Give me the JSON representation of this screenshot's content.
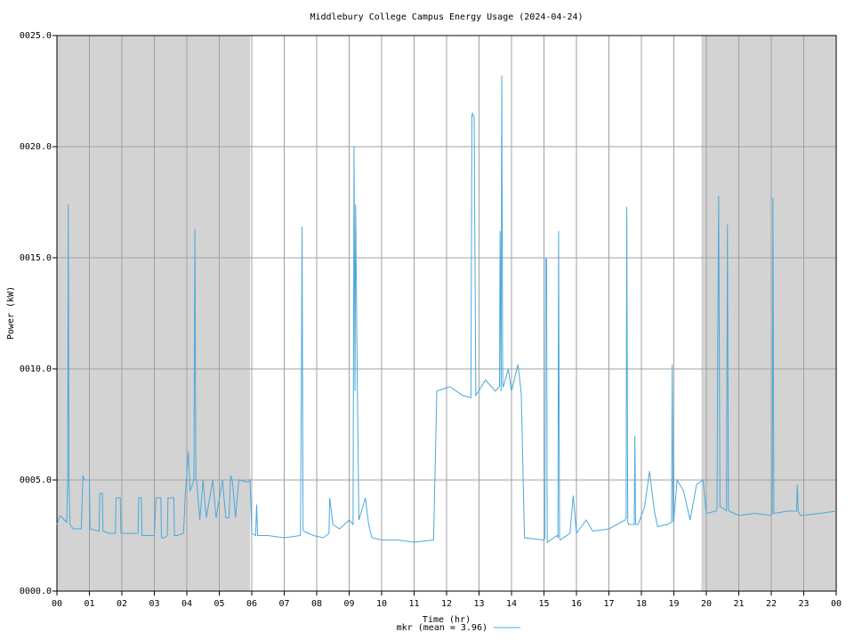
{
  "chart_data": {
    "type": "line",
    "title": "Middlebury College Campus Energy Usage (2024-04-24)",
    "x_label": "Time (hr)",
    "y_label": "Power (kW)",
    "xlim": [
      0,
      24
    ],
    "ylim": [
      0,
      25
    ],
    "xticks": [
      {
        "value": 0,
        "label": "00"
      },
      {
        "value": 1,
        "label": "01"
      },
      {
        "value": 2,
        "label": "02"
      },
      {
        "value": 3,
        "label": "03"
      },
      {
        "value": 4,
        "label": "04"
      },
      {
        "value": 5,
        "label": "05"
      },
      {
        "value": 6,
        "label": "06"
      },
      {
        "value": 7,
        "label": "07"
      },
      {
        "value": 8,
        "label": "08"
      },
      {
        "value": 9,
        "label": "09"
      },
      {
        "value": 10,
        "label": "10"
      },
      {
        "value": 11,
        "label": "11"
      },
      {
        "value": 12,
        "label": "12"
      },
      {
        "value": 13,
        "label": "13"
      },
      {
        "value": 14,
        "label": "14"
      },
      {
        "value": 15,
        "label": "15"
      },
      {
        "value": 16,
        "label": "16"
      },
      {
        "value": 17,
        "label": "17"
      },
      {
        "value": 18,
        "label": "18"
      },
      {
        "value": 19,
        "label": "19"
      },
      {
        "value": 20,
        "label": "20"
      },
      {
        "value": 21,
        "label": "21"
      },
      {
        "value": 22,
        "label": "22"
      },
      {
        "value": 23,
        "label": "23"
      },
      {
        "value": 24,
        "label": "00"
      }
    ],
    "yticks": [
      {
        "value": 0,
        "label": "0000.0"
      },
      {
        "value": 5,
        "label": "0005.0"
      },
      {
        "value": 10,
        "label": "0010.0"
      },
      {
        "value": 15,
        "label": "0015.0"
      },
      {
        "value": 20,
        "label": "0020.0"
      },
      {
        "value": 25,
        "label": "0025.0"
      }
    ],
    "grid": true,
    "shaded_regions": [
      [
        0,
        5.95
      ],
      [
        19.85,
        24
      ]
    ],
    "shade_color": "#d3d3d3",
    "legend": "bottom",
    "x": [
      0,
      0.1,
      0.3,
      0.33,
      0.35,
      0.37,
      0.4,
      0.5,
      0.75,
      0.8,
      0.85,
      1.0,
      1.02,
      1.3,
      1.32,
      1.4,
      1.42,
      1.6,
      1.8,
      1.82,
      1.95,
      1.97,
      2.2,
      2.5,
      2.52,
      2.6,
      2.62,
      2.8,
      3.0,
      3.05,
      3.2,
      3.22,
      3.3,
      3.4,
      3.42,
      3.6,
      3.62,
      3.7,
      3.9,
      3.95,
      4.05,
      4.1,
      4.22,
      4.25,
      4.28,
      4.3,
      4.4,
      4.5,
      4.6,
      4.8,
      4.9,
      5.1,
      5.2,
      5.3,
      5.35,
      5.4,
      5.5,
      5.6,
      5.9,
      5.95,
      6.0,
      6.12,
      6.15,
      6.18,
      6.5,
      7.0,
      7.5,
      7.53,
      7.55,
      7.58,
      7.6,
      7.9,
      8.2,
      8.38,
      8.4,
      8.5,
      8.7,
      9.0,
      9.12,
      9.15,
      9.18,
      9.2,
      9.25,
      9.3,
      9.5,
      9.6,
      9.7,
      10.0,
      10.5,
      11.0,
      11.6,
      11.7,
      12.1,
      12.5,
      12.75,
      12.78,
      12.8,
      12.85,
      12.9,
      13.2,
      13.5,
      13.63,
      13.65,
      13.68,
      13.7,
      13.73,
      13.75,
      13.9,
      14.0,
      14.2,
      14.3,
      14.4,
      15.0,
      15.03,
      15.05,
      15.08,
      15.1,
      15.4,
      15.43,
      15.45,
      15.48,
      15.5,
      15.8,
      15.9,
      16.0,
      16.3,
      16.5,
      17.0,
      17.5,
      17.53,
      17.55,
      17.58,
      17.6,
      17.78,
      17.8,
      17.82,
      17.9,
      18.1,
      18.25,
      18.4,
      18.5,
      18.8,
      18.93,
      18.95,
      18.98,
      19.0,
      19.1,
      19.3,
      19.5,
      19.7,
      19.9,
      20.0,
      20.3,
      20.33,
      20.35,
      20.38,
      20.42,
      20.45,
      20.62,
      20.65,
      20.68,
      20.7,
      21.0,
      21.5,
      22.0,
      22.03,
      22.05,
      22.08,
      22.1,
      22.5,
      22.78,
      22.8,
      22.83,
      22.9,
      23.5,
      24.0
    ],
    "series": [
      {
        "name": "mkr (mean = 3.96)",
        "color": "#4aa8dc",
        "values": [
          3.0,
          3.4,
          3.1,
          5.0,
          17.4,
          5.0,
          3.0,
          2.8,
          2.8,
          5.2,
          5.0,
          5.0,
          2.8,
          2.7,
          4.4,
          4.4,
          2.7,
          2.6,
          2.6,
          4.2,
          4.2,
          2.6,
          2.6,
          2.6,
          4.2,
          4.2,
          2.5,
          2.5,
          2.5,
          4.2,
          4.2,
          2.4,
          2.4,
          2.5,
          4.2,
          4.2,
          2.5,
          2.5,
          2.6,
          4.3,
          6.3,
          4.5,
          5.0,
          16.3,
          5.0,
          5.0,
          3.2,
          5.0,
          3.3,
          5.0,
          3.3,
          5.0,
          3.3,
          3.3,
          5.2,
          5.0,
          3.3,
          5.0,
          4.9,
          5.0,
          2.6,
          2.5,
          3.9,
          2.5,
          2.5,
          2.4,
          2.5,
          9.5,
          16.4,
          2.8,
          2.7,
          2.5,
          2.4,
          2.6,
          4.2,
          3.0,
          2.8,
          3.2,
          3.0,
          20.0,
          9.0,
          17.4,
          9.4,
          3.2,
          4.2,
          3.0,
          2.4,
          2.3,
          2.3,
          2.2,
          2.3,
          9.0,
          9.2,
          8.8,
          8.7,
          21.4,
          21.5,
          21.3,
          8.8,
          9.5,
          9.0,
          9.2,
          16.2,
          9.0,
          23.2,
          9.3,
          9.2,
          10.0,
          9.0,
          10.2,
          8.9,
          2.4,
          2.3,
          2.4,
          15.0,
          14.9,
          2.2,
          2.5,
          2.4,
          16.2,
          2.4,
          2.3,
          2.6,
          4.3,
          2.6,
          3.2,
          2.7,
          2.8,
          3.2,
          3.3,
          17.3,
          3.1,
          3.0,
          3.0,
          7.0,
          3.0,
          3.0,
          3.8,
          5.4,
          3.6,
          2.9,
          3.0,
          3.1,
          10.2,
          3.1,
          3.2,
          5.0,
          4.5,
          3.2,
          4.8,
          5.0,
          3.5,
          3.6,
          3.8,
          10.8,
          17.8,
          3.8,
          3.8,
          3.6,
          16.5,
          3.7,
          3.6,
          3.4,
          3.5,
          3.4,
          3.5,
          17.7,
          3.5,
          3.5,
          3.6,
          3.6,
          4.8,
          3.6,
          3.4,
          3.5,
          3.6
        ]
      }
    ]
  }
}
